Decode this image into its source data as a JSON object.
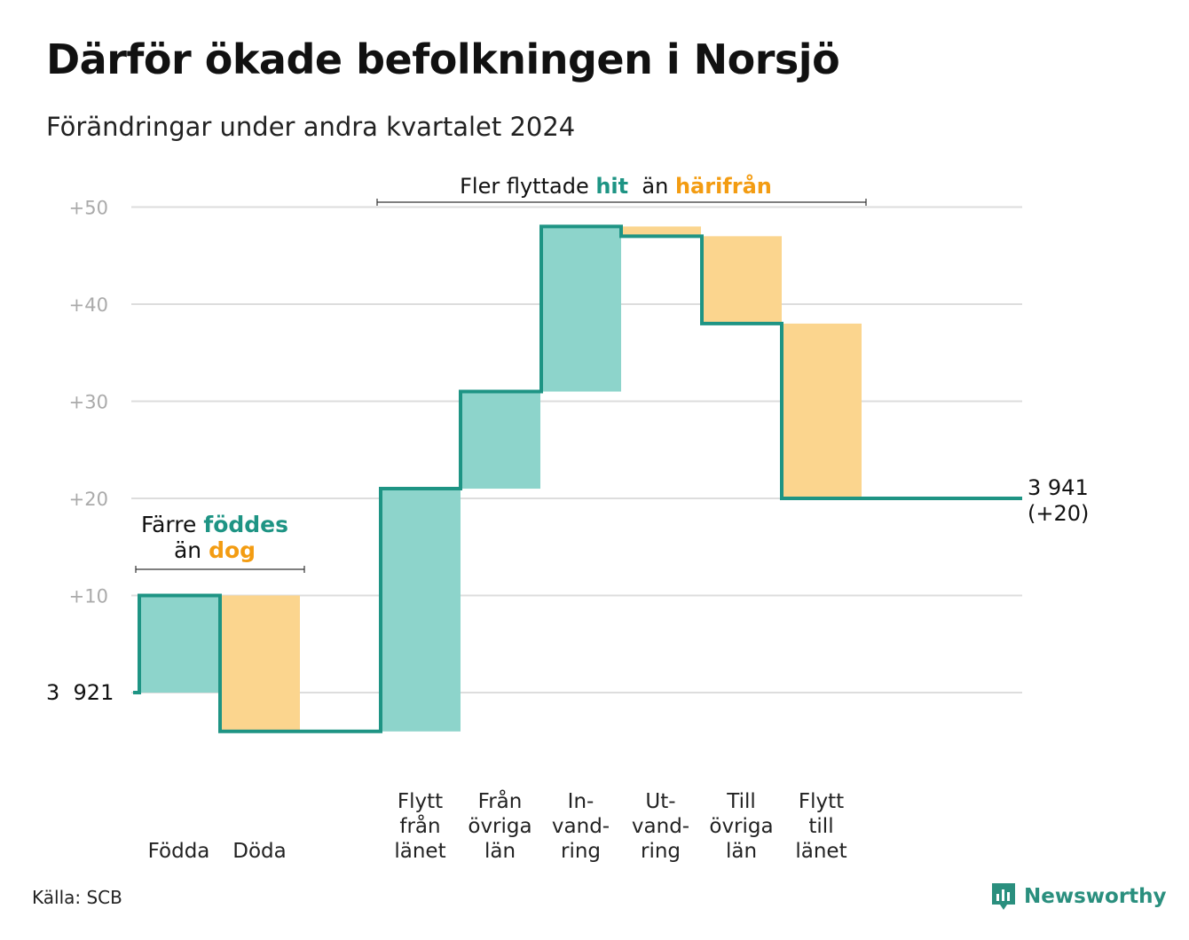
{
  "title": "Därför ökade befolkningen i Norsjö",
  "subtitle": "Förändringar under andra kvartalet 2024",
  "source": "Källa: SCB",
  "brand": {
    "name": "Newsworthy",
    "icon": "newsworthy-logo-icon"
  },
  "colors": {
    "increase": "#8dd4cb",
    "decrease": "#fbd58e",
    "line": "#1e9484",
    "accent_up": "#1e9484",
    "accent_down": "#f39c12",
    "grid": "#dddddd",
    "tick": "#aaaaaa"
  },
  "chart_data": {
    "type": "waterfall",
    "start": {
      "label": "3  921",
      "value": 3921
    },
    "end": {
      "label": "3 941",
      "change_label": "(+20)",
      "value": 3941
    },
    "y_ticks": [
      "+50",
      "+40",
      "+30",
      "+20",
      "+10"
    ],
    "ylim": [
      -4,
      50
    ],
    "grid": true,
    "steps": [
      {
        "label_lines": [
          "Födda"
        ],
        "value": 10,
        "from": 0,
        "to": 10
      },
      {
        "label_lines": [
          "Döda"
        ],
        "value": -14,
        "from": 10,
        "to": -4
      },
      {
        "label_lines": [
          "Flytt",
          "från",
          "länet"
        ],
        "value": 25,
        "from": -4,
        "to": 21
      },
      {
        "label_lines": [
          "Från",
          "övriga",
          "län"
        ],
        "value": 10,
        "from": 21,
        "to": 31
      },
      {
        "label_lines": [
          "In-",
          "vand-",
          "ring"
        ],
        "value": 17,
        "from": 31,
        "to": 48
      },
      {
        "label_lines": [
          "Ut-",
          "vand-",
          "ring"
        ],
        "value": -1,
        "from": 48,
        "to": 47
      },
      {
        "label_lines": [
          "Till",
          "övriga",
          "län"
        ],
        "value": -9,
        "from": 47,
        "to": 38
      },
      {
        "label_lines": [
          "Flytt",
          "till",
          "länet"
        ],
        "value": -18,
        "from": 38,
        "to": 20
      }
    ],
    "annotations": [
      {
        "lines": [
          [
            {
              "text": "Färre ",
              "tone": "plain"
            },
            {
              "text": "föddes",
              "tone": "up"
            }
          ],
          [
            {
              "text": "än ",
              "tone": "plain"
            },
            {
              "text": "dog",
              "tone": "down"
            }
          ]
        ]
      },
      {
        "lines": [
          [
            {
              "text": "Fler flyttade ",
              "tone": "plain"
            },
            {
              "text": "hit",
              "tone": "up"
            },
            {
              "text": "  än ",
              "tone": "plain"
            },
            {
              "text": "härifrån",
              "tone": "down"
            }
          ]
        ]
      }
    ]
  }
}
